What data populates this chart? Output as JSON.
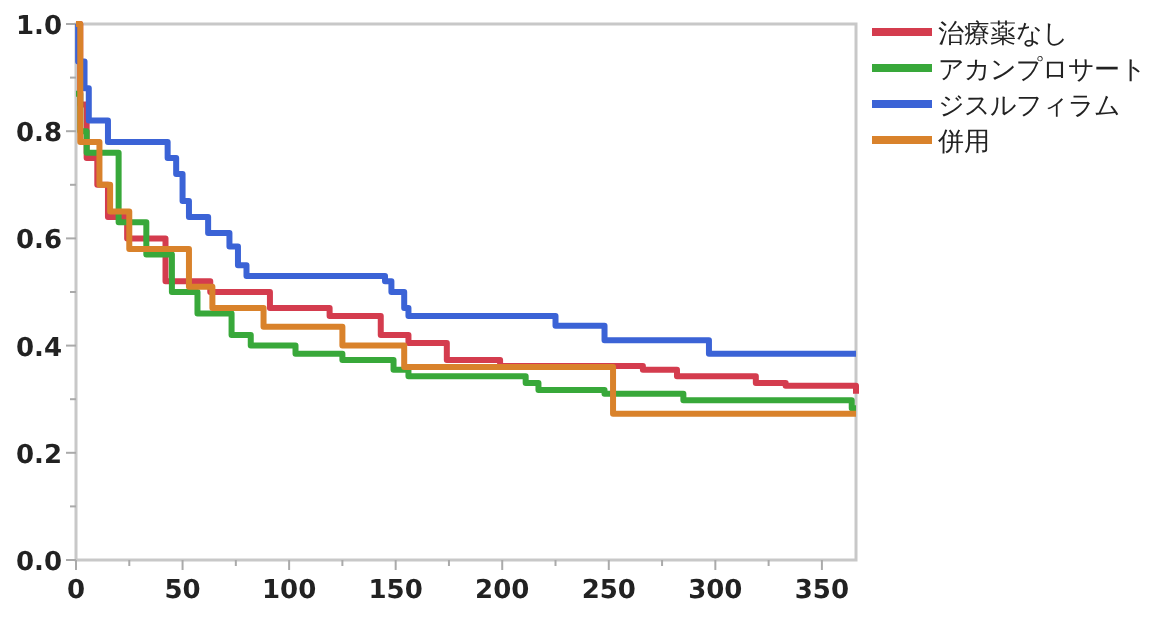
{
  "chart_data": {
    "type": "step",
    "xlim": [
      0,
      366
    ],
    "ylim": [
      0,
      1
    ],
    "xticks": [
      0,
      {
        "value": 25,
        "label": null
      },
      50,
      {
        "value": 75,
        "label": null
      },
      100,
      {
        "value": 125,
        "label": null
      },
      150,
      {
        "value": 175,
        "label": null
      },
      200,
      {
        "value": 225,
        "label": null
      },
      250,
      {
        "value": 275,
        "label": null
      },
      300,
      {
        "value": 325,
        "label": null
      },
      350
    ],
    "yticks": [
      {
        "value": 0,
        "label": "0.0"
      },
      {
        "value": 0.1,
        "label": null
      },
      {
        "value": 0.2,
        "label": "0.2"
      },
      {
        "value": 0.3,
        "label": null
      },
      {
        "value": 0.4,
        "label": "0.4"
      },
      {
        "value": 0.5,
        "label": null
      },
      {
        "value": 0.6,
        "label": "0.6"
      },
      {
        "value": 0.7,
        "label": null
      },
      {
        "value": 0.8,
        "label": "0.8"
      },
      {
        "value": 0.9,
        "label": null
      },
      {
        "value": 1,
        "label": "1.0"
      }
    ],
    "legend": "top right",
    "grid": false,
    "series": [
      {
        "name": "治療薬なし",
        "color": "#d43c4e",
        "x": [
          0,
          2,
          5,
          10,
          15,
          24,
          42,
          63,
          91,
          119,
          143,
          156,
          174,
          199,
          266,
          282,
          319,
          333,
          366
        ],
        "values": [
          1,
          0.85,
          0.75,
          0.7,
          0.64,
          0.6,
          0.52,
          0.5,
          0.47,
          0.455,
          0.42,
          0.405,
          0.373,
          0.362,
          0.355,
          0.343,
          0.33,
          0.325,
          0.31
        ]
      },
      {
        "name": "アカンプロサート",
        "color": "#38a83a",
        "x": [
          0,
          2,
          5,
          20,
          33,
          45,
          57,
          73,
          82,
          103,
          125,
          149,
          156,
          211,
          217,
          248,
          285,
          358,
          364,
          366
        ],
        "values": [
          0.87,
          0.8,
          0.76,
          0.63,
          0.57,
          0.5,
          0.46,
          0.42,
          0.4,
          0.385,
          0.373,
          0.355,
          0.343,
          0.33,
          0.317,
          0.31,
          0.298,
          0.298,
          0.283,
          0.283
        ]
      },
      {
        "name": "ジスルフィラム",
        "color": "#3b63d6",
        "x": [
          0,
          1,
          4,
          6,
          15,
          43,
          47,
          50,
          53,
          62,
          72,
          76,
          80,
          145,
          148,
          154,
          156,
          225,
          248,
          297,
          366
        ],
        "values": [
          1,
          0.93,
          0.88,
          0.82,
          0.78,
          0.75,
          0.72,
          0.67,
          0.64,
          0.61,
          0.585,
          0.55,
          0.53,
          0.52,
          0.5,
          0.47,
          0.455,
          0.437,
          0.41,
          0.385,
          0.385
        ]
      },
      {
        "name": "併用",
        "color": "#d9822b",
        "x": [
          0,
          2,
          11,
          16,
          25,
          53,
          64,
          88,
          125,
          154,
          246,
          252,
          366
        ],
        "values": [
          1,
          0.78,
          0.7,
          0.65,
          0.58,
          0.51,
          0.47,
          0.435,
          0.4,
          0.36,
          0.36,
          0.273,
          0.273
        ]
      }
    ]
  }
}
